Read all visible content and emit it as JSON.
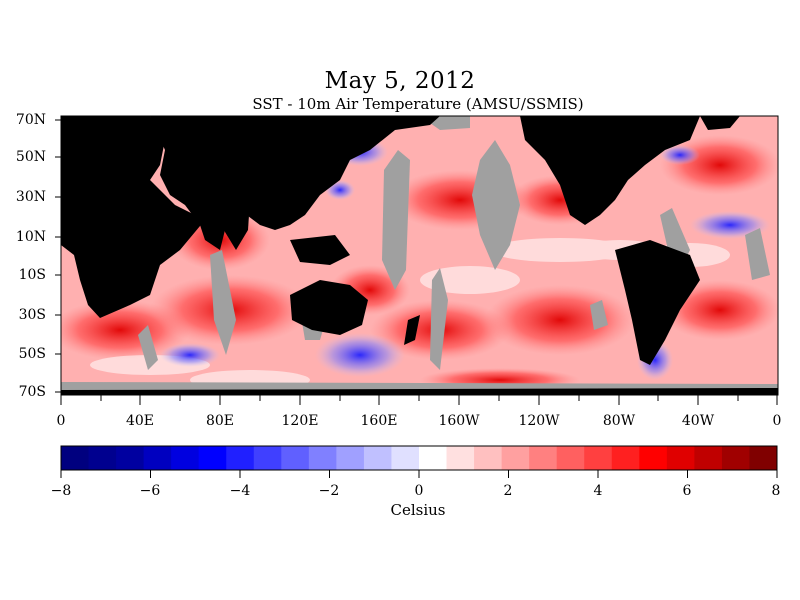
{
  "title": "May 5, 2012",
  "subtitle": "SST - 10m Air Temperature (AMSU/SSMIS)",
  "units_label": "Celsius",
  "lat_labels": [
    "70N",
    "50N",
    "30N",
    "10N",
    "10S",
    "30S",
    "50S",
    "70S"
  ],
  "lon_labels": [
    "0",
    "40E",
    "80E",
    "120E",
    "160E",
    "160W",
    "120W",
    "80W",
    "40W",
    "0"
  ],
  "colorbar": {
    "tick_labels": [
      "−8",
      "−6",
      "−4",
      "−2",
      "0",
      "2",
      "4",
      "6",
      "8"
    ],
    "min": -8,
    "max": 8,
    "colors": [
      "#00007f",
      "#00008f",
      "#0000a0",
      "#0000c0",
      "#0000e0",
      "#0000ff",
      "#2020ff",
      "#4040ff",
      "#6060ff",
      "#8080ff",
      "#a0a0ff",
      "#c0c0ff",
      "#e0e0ff",
      "#ffffff",
      "#ffe0e0",
      "#ffc0c0",
      "#ffa0a0",
      "#ff8080",
      "#ff6060",
      "#ff4040",
      "#ff2020",
      "#ff0000",
      "#e00000",
      "#c00000",
      "#a00000",
      "#800000"
    ]
  },
  "colors": {
    "land": "#000000",
    "ice_missing": "#a0a0a0",
    "warm": "#ff2020",
    "cold": "#2020ff"
  }
}
